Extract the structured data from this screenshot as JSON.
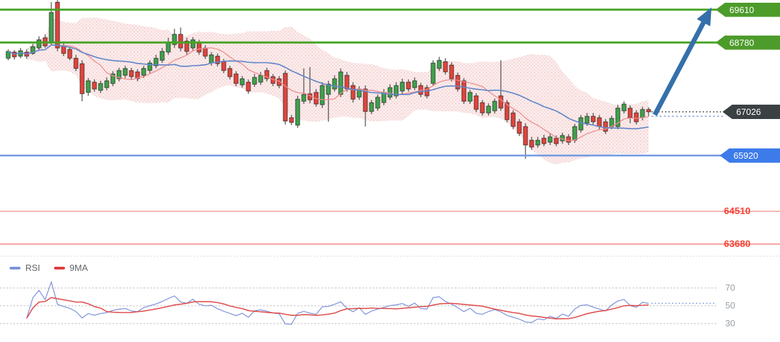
{
  "chart_data": {
    "type": "candlestick",
    "description": "Price chart with Bollinger band, two moving averages, support/resistance levels, bullish arrow annotation and RSI sub-panel",
    "main_pane": {
      "ylim": [
        63400,
        69855
      ],
      "candles": [
        [
          68382,
          68607,
          68330,
          68555
        ],
        [
          68538,
          68590,
          68348,
          68417
        ],
        [
          68434,
          68642,
          68382,
          68572
        ],
        [
          68538,
          68607,
          68365,
          68434
        ],
        [
          68503,
          68745,
          68469,
          68676
        ],
        [
          68642,
          68936,
          68590,
          68849
        ],
        [
          68901,
          68988,
          68642,
          68694
        ],
        [
          68763,
          69800,
          68728,
          69541
        ],
        [
          69800,
          69852,
          68555,
          68642
        ],
        [
          68694,
          68763,
          68434,
          68503
        ],
        [
          68607,
          68676,
          68330,
          68382
        ],
        [
          68382,
          68469,
          68054,
          68123
        ],
        [
          68244,
          68330,
          67293,
          67483
        ],
        [
          67518,
          67881,
          67431,
          67812
        ],
        [
          67777,
          67846,
          67535,
          67604
        ],
        [
          67569,
          67812,
          67500,
          67743
        ],
        [
          67639,
          67898,
          67569,
          67812
        ],
        [
          67743,
          68054,
          67673,
          67985
        ],
        [
          67864,
          68140,
          67795,
          68071
        ],
        [
          67950,
          68192,
          67881,
          68123
        ],
        [
          68071,
          68140,
          67846,
          67916
        ],
        [
          68037,
          68106,
          67795,
          67864
        ],
        [
          67950,
          68192,
          67881,
          68123
        ],
        [
          68071,
          68330,
          68002,
          68261
        ],
        [
          68192,
          68469,
          68123,
          68382
        ],
        [
          68330,
          68642,
          68261,
          68555
        ],
        [
          68538,
          68901,
          68469,
          68780
        ],
        [
          68728,
          69126,
          68642,
          68988
        ],
        [
          68988,
          69160,
          68555,
          68642
        ],
        [
          68815,
          68901,
          68469,
          68555
        ],
        [
          68642,
          68918,
          68572,
          68849
        ],
        [
          68780,
          68849,
          68469,
          68538
        ],
        [
          68642,
          68711,
          68365,
          68434
        ],
        [
          68261,
          68538,
          68192,
          68469
        ],
        [
          68434,
          68503,
          68175,
          68244
        ],
        [
          68296,
          68365,
          68002,
          68071
        ],
        [
          68123,
          68192,
          67846,
          67916
        ],
        [
          67985,
          68054,
          67673,
          67743
        ],
        [
          67708,
          67933,
          67639,
          67864
        ],
        [
          67777,
          67846,
          67483,
          67552
        ],
        [
          67725,
          67985,
          67656,
          67898
        ],
        [
          67777,
          68037,
          67708,
          67950
        ],
        [
          68071,
          68140,
          67795,
          67864
        ],
        [
          67916,
          67985,
          67673,
          67743
        ],
        [
          67864,
          67933,
          67622,
          67691
        ],
        [
          68002,
          68071,
          66705,
          66792
        ],
        [
          66878,
          66947,
          66688,
          66757
        ],
        [
          66688,
          67431,
          66619,
          67345
        ],
        [
          67293,
          68123,
          67224,
          67466
        ],
        [
          67483,
          68157,
          67242,
          67328
        ],
        [
          67518,
          67604,
          67155,
          67224
        ],
        [
          67207,
          67777,
          67120,
          67691
        ],
        [
          67466,
          67812,
          66774,
          67725
        ],
        [
          67604,
          67950,
          67535,
          67864
        ],
        [
          67466,
          68123,
          67397,
          68037
        ],
        [
          67950,
          68037,
          67535,
          67604
        ],
        [
          67691,
          67777,
          67259,
          67345
        ],
        [
          67397,
          67673,
          67328,
          67604
        ],
        [
          67604,
          67691,
          66653,
          67034
        ],
        [
          67034,
          67328,
          66965,
          67259
        ],
        [
          67120,
          67466,
          67051,
          67397
        ],
        [
          67259,
          67604,
          67190,
          67518
        ],
        [
          67397,
          67725,
          67328,
          67639
        ],
        [
          67431,
          67777,
          67362,
          67691
        ],
        [
          67552,
          67864,
          67483,
          67777
        ],
        [
          67777,
          67846,
          67535,
          67604
        ],
        [
          67639,
          67898,
          67569,
          67812
        ],
        [
          67691,
          67760,
          67397,
          67466
        ],
        [
          67639,
          67708,
          67362,
          67431
        ],
        [
          67743,
          68330,
          67673,
          68261
        ],
        [
          68123,
          68417,
          68054,
          68330
        ],
        [
          68296,
          68382,
          67968,
          68037
        ],
        [
          68209,
          68279,
          67795,
          67864
        ],
        [
          67950,
          68019,
          67535,
          67604
        ],
        [
          67812,
          67881,
          67224,
          67293
        ],
        [
          67293,
          67587,
          67224,
          67518
        ],
        [
          67431,
          67500,
          67016,
          67086
        ],
        [
          67259,
          67328,
          66930,
          66999
        ],
        [
          66999,
          67242,
          66930,
          67172
        ],
        [
          67051,
          67362,
          66982,
          67293
        ],
        [
          67431,
          68330,
          67051,
          67120
        ],
        [
          67259,
          67328,
          66757,
          66826
        ],
        [
          66999,
          67068,
          66584,
          66653
        ],
        [
          66774,
          66844,
          66411,
          66480
        ],
        [
          66653,
          66740,
          65841,
          66186
        ],
        [
          66307,
          66394,
          66065,
          66134
        ],
        [
          66186,
          66394,
          66117,
          66307
        ],
        [
          66359,
          66446,
          66152,
          66221
        ],
        [
          66256,
          66480,
          66186,
          66394
        ],
        [
          66359,
          66428,
          66152,
          66221
        ],
        [
          66290,
          66498,
          66221,
          66428
        ],
        [
          66394,
          66463,
          66186,
          66256
        ],
        [
          66307,
          66722,
          66238,
          66653
        ],
        [
          66567,
          66947,
          66498,
          66878
        ],
        [
          66740,
          66999,
          66670,
          66913
        ],
        [
          66913,
          66999,
          66705,
          66774
        ],
        [
          66878,
          66947,
          66584,
          66653
        ],
        [
          66774,
          66844,
          66463,
          66532
        ],
        [
          66653,
          66930,
          66584,
          66861
        ],
        [
          66653,
          67207,
          66584,
          67120
        ],
        [
          67051,
          67293,
          66982,
          67224
        ],
        [
          67120,
          67190,
          66740,
          66878
        ],
        [
          66999,
          67068,
          66705,
          66774
        ],
        [
          66878,
          67155,
          66809,
          67086
        ],
        [
          67086,
          67138,
          66913,
          67026
        ]
      ],
      "overlays": {
        "ma_slow": {
          "period": 21,
          "color": "#6287c9"
        },
        "ma_fast": {
          "period": 9,
          "color": "#ef8c8c"
        },
        "bollinger_band": {
          "period": 20,
          "stdev_mult": 2,
          "fill_base": "#f7dada",
          "fill_dot": "#eba6a6"
        }
      },
      "levels": [
        {
          "label": "69610",
          "price": 69610,
          "kind": "resistance",
          "line_color": "#44a321",
          "badge_color": "#4d9b2b",
          "badge": true
        },
        {
          "label": "68780",
          "price": 68780,
          "kind": "resistance",
          "line_color": "#44a321",
          "badge_color": "#4d9b2b",
          "badge": true
        },
        {
          "label": "67026",
          "price": 67026,
          "kind": "current_price",
          "line_color": "#555555",
          "badge_color": "#3b4043",
          "badge": true,
          "dotted": true
        },
        {
          "label": "65920",
          "price": 65920,
          "kind": "support",
          "line_color": "#7296e3",
          "badge_color": "#3d7beb",
          "badge": true
        },
        {
          "label": "64510",
          "price": 64510,
          "kind": "support_far",
          "line_color": "#f6a9a9",
          "text_color": "#f44336",
          "badge": false
        },
        {
          "label": "63680",
          "price": 63680,
          "kind": "support_far",
          "line_color": "#f29b9b",
          "text_color": "#f44336",
          "badge": false
        }
      ],
      "annotation_arrow": {
        "from_price": 66950,
        "to_price": 69610,
        "color": "#3570ab"
      }
    },
    "rsi_pane": {
      "indicator": "RSI",
      "period": 14,
      "ma_period": 9,
      "gridlines": [
        {
          "value": 70,
          "label": "70"
        },
        {
          "value": 50,
          "label": "50"
        },
        {
          "value": 30,
          "label": "30"
        }
      ],
      "legend": [
        {
          "label": "RSI",
          "color": "#7b93db"
        },
        {
          "label": "9MA",
          "color": "#e03c3c"
        }
      ],
      "line_colors": {
        "rsi": "#8296dd",
        "rsi_ma": "#e04f4f"
      },
      "last_value_line_color": "#93abe3"
    },
    "colors": {
      "bull": "#3fa14b",
      "bear": "#e0443c",
      "wick": "#3a3a3a",
      "current_dotted": "#555555",
      "current_dotted_blue": "#a9bfe9",
      "separator": "#d0d0d0"
    }
  }
}
